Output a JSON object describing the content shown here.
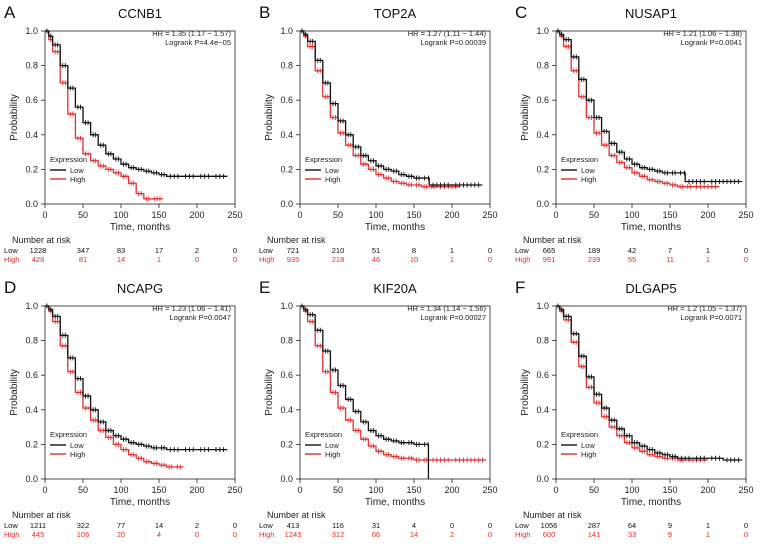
{
  "colors": {
    "low": "#111111",
    "high": "#e03030",
    "axis": "#222222"
  },
  "labels": {
    "ylabel": "Probability",
    "xlabel": "Time, months",
    "legend_title": "Expression",
    "legend_low": "Low",
    "legend_high": "High",
    "number_at_risk": "Number at risk",
    "low_row": "Low",
    "high_row": "High"
  },
  "chart_data": [
    {
      "type": "line",
      "letter": "A",
      "title": "CCNB1",
      "hr": "HR = 1.35 (1.17 − 1.57)",
      "logrank": "Logrank P=4.4e−05",
      "xlabel": "Time, months",
      "ylabel": "Probability",
      "xlim": [
        0,
        250
      ],
      "ylim": [
        0,
        1
      ],
      "x_ticks": [
        0,
        50,
        100,
        150,
        200,
        250
      ],
      "y_ticks": [
        0.0,
        0.2,
        0.4,
        0.6,
        0.8,
        1.0
      ],
      "series": [
        {
          "name": "Low",
          "x": [
            0,
            5,
            10,
            20,
            30,
            40,
            50,
            60,
            70,
            80,
            90,
            100,
            110,
            120,
            130,
            140,
            150,
            160,
            180,
            200,
            220,
            240
          ],
          "y": [
            1.0,
            0.97,
            0.92,
            0.8,
            0.67,
            0.56,
            0.47,
            0.4,
            0.34,
            0.29,
            0.26,
            0.23,
            0.21,
            0.2,
            0.19,
            0.18,
            0.17,
            0.16,
            0.16,
            0.16,
            0.16,
            0.16
          ]
        },
        {
          "name": "High",
          "x": [
            0,
            5,
            10,
            20,
            30,
            40,
            50,
            60,
            70,
            80,
            90,
            100,
            110,
            120,
            130,
            140,
            155
          ],
          "y": [
            1.0,
            0.95,
            0.88,
            0.7,
            0.52,
            0.38,
            0.29,
            0.25,
            0.22,
            0.2,
            0.18,
            0.16,
            0.12,
            0.06,
            0.03,
            0.03,
            0.03
          ]
        }
      ],
      "risk": {
        "times": [
          0,
          50,
          100,
          150,
          200,
          250
        ],
        "low": [
          "1228",
          "347",
          "83",
          "17",
          "2",
          "0"
        ],
        "high": [
          "428",
          "81",
          "14",
          "1",
          "0",
          "0"
        ]
      }
    },
    {
      "type": "line",
      "letter": "B",
      "title": "TOP2A",
      "hr": "HR = 1.27 (1.11 − 1.44)",
      "logrank": "Logrank P=0.00039",
      "xlabel": "Time, months",
      "ylabel": "Probability",
      "xlim": [
        0,
        250
      ],
      "ylim": [
        0,
        1
      ],
      "x_ticks": [
        0,
        50,
        100,
        150,
        200,
        250
      ],
      "y_ticks": [
        0.0,
        0.2,
        0.4,
        0.6,
        0.8,
        1.0
      ],
      "series": [
        {
          "name": "Low",
          "x": [
            0,
            5,
            10,
            20,
            30,
            40,
            50,
            60,
            70,
            80,
            90,
            100,
            110,
            120,
            130,
            140,
            150,
            160,
            168,
            170,
            200,
            240
          ],
          "y": [
            1.0,
            0.98,
            0.94,
            0.83,
            0.7,
            0.58,
            0.48,
            0.4,
            0.33,
            0.28,
            0.25,
            0.22,
            0.2,
            0.19,
            0.17,
            0.16,
            0.15,
            0.15,
            0.15,
            0.11,
            0.11,
            0.11
          ]
        },
        {
          "name": "High",
          "x": [
            0,
            5,
            10,
            20,
            30,
            40,
            50,
            60,
            70,
            80,
            90,
            100,
            110,
            120,
            130,
            140,
            150,
            160,
            170,
            180,
            210
          ],
          "y": [
            1.0,
            0.97,
            0.91,
            0.77,
            0.62,
            0.5,
            0.41,
            0.34,
            0.28,
            0.23,
            0.2,
            0.17,
            0.15,
            0.13,
            0.12,
            0.11,
            0.11,
            0.1,
            0.1,
            0.1,
            0.1
          ]
        }
      ],
      "risk": {
        "times": [
          0,
          50,
          100,
          150,
          200,
          250
        ],
        "low": [
          "721",
          "210",
          "51",
          "8",
          "1",
          "0"
        ],
        "high": [
          "935",
          "218",
          "46",
          "10",
          "1",
          "0"
        ]
      }
    },
    {
      "type": "line",
      "letter": "C",
      "title": "NUSAP1",
      "hr": "HR = 1.21 (1.06 − 1.38)",
      "logrank": "Logrank P=0.0041",
      "xlabel": "Time, months",
      "ylabel": "Probability",
      "xlim": [
        0,
        250
      ],
      "ylim": [
        0,
        1
      ],
      "x_ticks": [
        0,
        50,
        100,
        150,
        200,
        250
      ],
      "y_ticks": [
        0.0,
        0.2,
        0.4,
        0.6,
        0.8,
        1.0
      ],
      "series": [
        {
          "name": "Low",
          "x": [
            0,
            5,
            10,
            20,
            30,
            40,
            50,
            60,
            70,
            80,
            90,
            100,
            110,
            120,
            130,
            140,
            150,
            160,
            168,
            170,
            200,
            245
          ],
          "y": [
            1.0,
            0.98,
            0.95,
            0.85,
            0.72,
            0.6,
            0.5,
            0.42,
            0.35,
            0.3,
            0.26,
            0.23,
            0.21,
            0.2,
            0.19,
            0.18,
            0.18,
            0.18,
            0.18,
            0.13,
            0.13,
            0.13
          ]
        },
        {
          "name": "High",
          "x": [
            0,
            5,
            10,
            20,
            30,
            40,
            50,
            60,
            70,
            80,
            90,
            100,
            110,
            120,
            130,
            140,
            150,
            160,
            170,
            180,
            215
          ],
          "y": [
            1.0,
            0.97,
            0.91,
            0.77,
            0.62,
            0.5,
            0.41,
            0.34,
            0.28,
            0.24,
            0.21,
            0.18,
            0.16,
            0.14,
            0.13,
            0.12,
            0.11,
            0.1,
            0.1,
            0.1,
            0.1
          ]
        }
      ],
      "risk": {
        "times": [
          0,
          50,
          100,
          150,
          200,
          250
        ],
        "low": [
          "665",
          "189",
          "42",
          "7",
          "1",
          "0"
        ],
        "high": [
          "991",
          "239",
          "55",
          "11",
          "1",
          "0"
        ]
      }
    },
    {
      "type": "line",
      "letter": "D",
      "title": "NCAPG",
      "hr": "HR = 1.23 (1.06 − 1.41)",
      "logrank": "Logrank P=0.0047",
      "xlabel": "Time, months",
      "ylabel": "Probability",
      "xlim": [
        0,
        250
      ],
      "ylim": [
        0,
        1
      ],
      "x_ticks": [
        0,
        50,
        100,
        150,
        200,
        250
      ],
      "y_ticks": [
        0.0,
        0.2,
        0.4,
        0.6,
        0.8,
        1.0
      ],
      "series": [
        {
          "name": "Low",
          "x": [
            0,
            5,
            10,
            20,
            30,
            40,
            50,
            60,
            70,
            80,
            90,
            100,
            110,
            120,
            130,
            140,
            150,
            160,
            180,
            200,
            220,
            240
          ],
          "y": [
            1.0,
            0.98,
            0.94,
            0.83,
            0.7,
            0.58,
            0.48,
            0.4,
            0.33,
            0.28,
            0.25,
            0.23,
            0.21,
            0.2,
            0.19,
            0.18,
            0.18,
            0.17,
            0.17,
            0.17,
            0.17,
            0.17
          ]
        },
        {
          "name": "High",
          "x": [
            0,
            5,
            10,
            20,
            30,
            40,
            50,
            60,
            70,
            80,
            90,
            100,
            110,
            120,
            130,
            140,
            150,
            160,
            170,
            182
          ],
          "y": [
            1.0,
            0.97,
            0.91,
            0.77,
            0.62,
            0.5,
            0.41,
            0.34,
            0.28,
            0.24,
            0.2,
            0.17,
            0.14,
            0.12,
            0.1,
            0.09,
            0.08,
            0.07,
            0.07,
            0.07
          ]
        }
      ],
      "risk": {
        "times": [
          0,
          50,
          100,
          150,
          200,
          250
        ],
        "low": [
          "1211",
          "322",
          "77",
          "14",
          "2",
          "0"
        ],
        "high": [
          "445",
          "106",
          "20",
          "4",
          "0",
          "0"
        ]
      }
    },
    {
      "type": "line",
      "letter": "E",
      "title": "KIF20A",
      "hr": "HR = 1.34 (1.14 − 1.56)",
      "logrank": "Logrank P=0.00027",
      "xlabel": "Time, months",
      "ylabel": "Probability",
      "xlim": [
        0,
        250
      ],
      "ylim": [
        0,
        1
      ],
      "x_ticks": [
        0,
        50,
        100,
        150,
        200,
        250
      ],
      "y_ticks": [
        0.0,
        0.2,
        0.4,
        0.6,
        0.8,
        1.0
      ],
      "series": [
        {
          "name": "Low",
          "x": [
            0,
            5,
            10,
            20,
            30,
            40,
            50,
            60,
            70,
            80,
            90,
            100,
            110,
            120,
            130,
            140,
            150,
            160,
            168,
            169
          ],
          "y": [
            1.0,
            0.98,
            0.95,
            0.86,
            0.74,
            0.63,
            0.54,
            0.46,
            0.39,
            0.33,
            0.28,
            0.25,
            0.23,
            0.22,
            0.21,
            0.21,
            0.2,
            0.2,
            0.2,
            0.0
          ]
        },
        {
          "name": "High",
          "x": [
            0,
            5,
            10,
            20,
            30,
            40,
            50,
            60,
            70,
            80,
            90,
            100,
            110,
            120,
            130,
            140,
            150,
            160,
            170,
            200,
            245
          ],
          "y": [
            1.0,
            0.97,
            0.91,
            0.77,
            0.62,
            0.5,
            0.41,
            0.34,
            0.28,
            0.23,
            0.19,
            0.16,
            0.14,
            0.13,
            0.12,
            0.12,
            0.11,
            0.11,
            0.11,
            0.11,
            0.11
          ]
        }
      ],
      "risk": {
        "times": [
          0,
          50,
          100,
          150,
          200,
          250
        ],
        "low": [
          "413",
          "116",
          "31",
          "4",
          "0",
          "0"
        ],
        "high": [
          "1243",
          "312",
          "66",
          "14",
          "2",
          "0"
        ]
      }
    },
    {
      "type": "line",
      "letter": "F",
      "title": "DLGAP5",
      "hr": "HR = 1.2 (1.05 − 1.37)",
      "logrank": "Logrank P=0.0071",
      "xlabel": "Time, months",
      "ylabel": "Probability",
      "xlim": [
        0,
        250
      ],
      "ylim": [
        0,
        1
      ],
      "x_ticks": [
        0,
        50,
        100,
        150,
        200,
        250
      ],
      "y_ticks": [
        0.0,
        0.2,
        0.4,
        0.6,
        0.8,
        1.0
      ],
      "series": [
        {
          "name": "Low",
          "x": [
            0,
            5,
            10,
            20,
            30,
            40,
            50,
            60,
            70,
            80,
            90,
            100,
            110,
            120,
            130,
            140,
            150,
            160,
            180,
            200,
            220,
            245
          ],
          "y": [
            1.0,
            0.98,
            0.94,
            0.84,
            0.71,
            0.59,
            0.49,
            0.41,
            0.34,
            0.29,
            0.25,
            0.21,
            0.19,
            0.17,
            0.15,
            0.14,
            0.13,
            0.12,
            0.12,
            0.12,
            0.11,
            0.11
          ]
        },
        {
          "name": "High",
          "x": [
            0,
            5,
            10,
            20,
            30,
            40,
            50,
            60,
            70,
            80,
            90,
            100,
            110,
            120,
            130,
            140,
            150,
            160,
            170,
            200
          ],
          "y": [
            1.0,
            0.97,
            0.92,
            0.79,
            0.65,
            0.53,
            0.44,
            0.36,
            0.3,
            0.25,
            0.21,
            0.18,
            0.16,
            0.14,
            0.13,
            0.12,
            0.12,
            0.11,
            0.11,
            0.11
          ]
        }
      ],
      "risk": {
        "times": [
          0,
          50,
          100,
          150,
          200,
          250
        ],
        "low": [
          "1056",
          "287",
          "64",
          "9",
          "1",
          "0"
        ],
        "high": [
          "600",
          "141",
          "33",
          "9",
          "1",
          "0"
        ]
      }
    }
  ]
}
